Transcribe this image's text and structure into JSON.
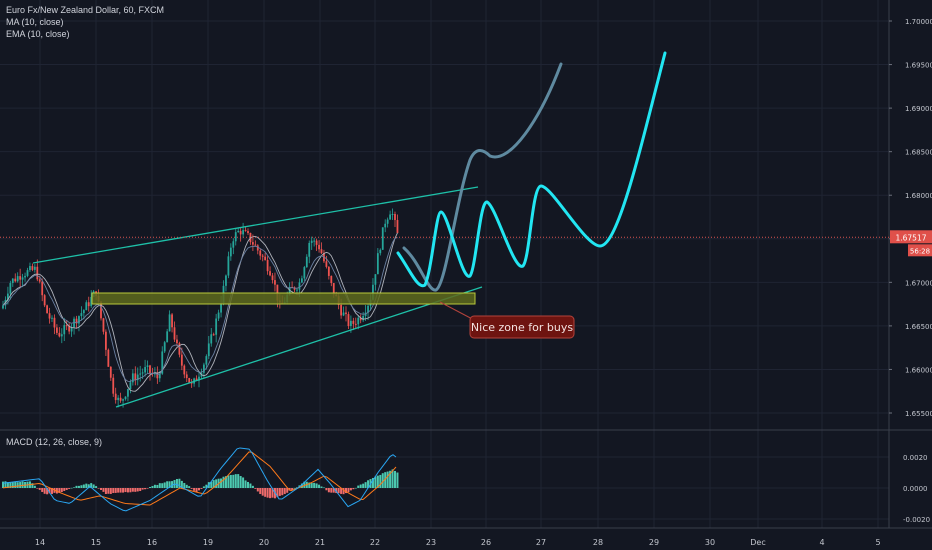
{
  "colors": {
    "background": "#131722",
    "grid": "#1f2433",
    "axis_text": "#c3c6ce",
    "candle_up": "#26a69a",
    "candle_down": "#ef5350",
    "ma": "#b0b3bb",
    "ema": "#6a7fa0",
    "channel": "#1ec0a8",
    "zone_fill": "#5e6a1c",
    "zone_stroke": "#b9c93a",
    "projection_cyan": "#22e6f2",
    "projection_steel": "#5f8aa0",
    "price_line": "#d9534f",
    "callout_fill": "#6e1410",
    "callout_stroke": "#b3433c",
    "macd_line": "#2aa6f2",
    "signal_line": "#ff7a1a",
    "hist_up": "#4cc9b0",
    "hist_down": "#ef6b6b"
  },
  "header": {
    "symbol_line": "Euro Fx/New Zealand Dollar, 60, FXCM",
    "ma_label": "MA (10, close)",
    "ema_label": "EMA (10, close)"
  },
  "macd": {
    "label": "MACD (12, 26, close, 9)",
    "ticks": [
      "0.0020",
      "0.0000",
      "-0.0020"
    ]
  },
  "price_axis": {
    "ticks": [
      "1.70000",
      "1.69500",
      "1.69000",
      "1.68500",
      "1.68000",
      "1.67500",
      "1.67000",
      "1.66500",
      "1.66000",
      "1.65500"
    ],
    "current_price": "1.67517",
    "countdown": "56:28"
  },
  "time_axis": {
    "ticks": [
      "14",
      "15",
      "16",
      "19",
      "20",
      "21",
      "22",
      "23",
      "26",
      "27",
      "28",
      "29",
      "30",
      "Dec",
      "4",
      "5"
    ]
  },
  "annotation": {
    "text": "Nice zone for buys"
  },
  "chart_data": {
    "type": "candlestick",
    "symbol": "Euro Fx/New Zealand Dollar",
    "interval": "60",
    "ylim": [
      1.6525,
      1.7025
    ],
    "current_price": 1.67517,
    "price_series": [
      [
        "14",
        1.67
      ],
      [
        "14.5",
        1.672
      ],
      [
        "15",
        1.665
      ],
      [
        "15.5",
        1.656
      ],
      [
        "16",
        1.661
      ],
      [
        "16.5",
        1.66
      ],
      [
        "19",
        1.666
      ],
      [
        "19.5",
        1.676
      ],
      [
        "20",
        1.672
      ],
      [
        "20.5",
        1.668
      ],
      [
        "21",
        1.6755
      ],
      [
        "21.5",
        1.668
      ],
      [
        "22",
        1.666
      ],
      [
        "22.4",
        1.6785
      ],
      [
        "22.6",
        1.6755
      ]
    ],
    "channel": {
      "upper": [
        [
          "14",
          1.672
        ],
        [
          "26",
          1.681
        ]
      ],
      "lower": [
        [
          "15.5",
          1.656
        ],
        [
          "26",
          1.6695
        ]
      ]
    },
    "zone": [
      1.668,
      1.669
    ],
    "macd_range": [
      -0.0025,
      0.003
    ]
  }
}
